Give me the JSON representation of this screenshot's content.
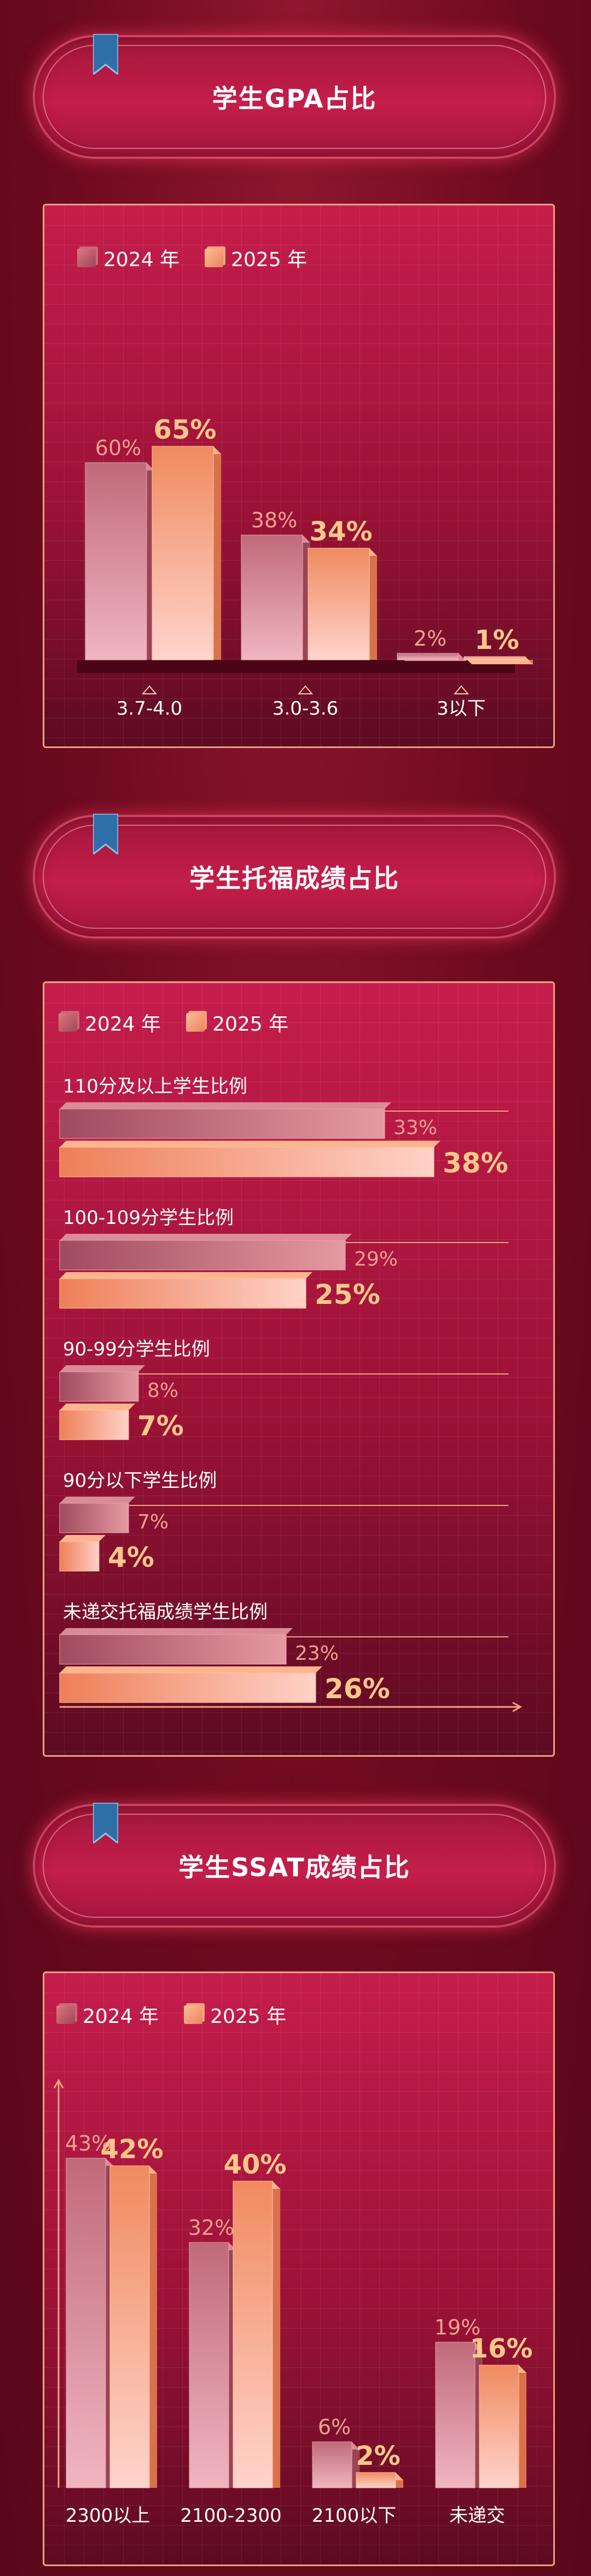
{
  "sections": [
    {
      "title": "学生GPA占比"
    },
    {
      "title": "学生托福成绩占比"
    },
    {
      "title": "学生SSAT成绩占比"
    }
  ],
  "legend": {
    "y2024": "2024 年",
    "y2025": "2025 年"
  },
  "colors": {
    "c2024": "#b45a6c",
    "c2025": "#f2a07a",
    "label2024": "#f0a090",
    "label2025": "#ffc88a"
  },
  "chart_data": [
    {
      "type": "bar",
      "title": "学生GPA占比",
      "categories": [
        "3.7-4.0",
        "3.0-3.6",
        "3以下"
      ],
      "series": [
        {
          "name": "2024 年",
          "values": [
            60,
            38,
            2
          ],
          "labels": [
            "60%",
            "38%",
            "2%"
          ]
        },
        {
          "name": "2025 年",
          "values": [
            65,
            34,
            1
          ],
          "labels": [
            "65%",
            "34%",
            "1%"
          ]
        }
      ],
      "ylim": [
        0,
        70
      ]
    },
    {
      "type": "bar",
      "orientation": "horizontal",
      "title": "学生托福成绩占比",
      "categories": [
        "110分及以上学生比例",
        "100-109分学生比例",
        "90-99分学生比例",
        "90分以下学生比例",
        "未递交托福成绩学生比例"
      ],
      "series": [
        {
          "name": "2024 年",
          "values": [
            33,
            29,
            8,
            7,
            23
          ],
          "labels": [
            "33%",
            "29%",
            "8%",
            "7%",
            "23%"
          ]
        },
        {
          "name": "2025 年",
          "values": [
            38,
            25,
            7,
            4,
            26
          ],
          "labels": [
            "38%",
            "25%",
            "7%",
            "4%",
            "26%"
          ]
        }
      ],
      "xlim": [
        0,
        40
      ]
    },
    {
      "type": "bar",
      "title": "学生SSAT成绩占比",
      "categories": [
        "2300以上",
        "2100-2300",
        "2100以下",
        "未递交"
      ],
      "series": [
        {
          "name": "2024 年",
          "values": [
            43,
            32,
            6,
            19
          ],
          "labels": [
            "43%",
            "32%",
            "6%",
            "19%"
          ]
        },
        {
          "name": "2025 年",
          "values": [
            42,
            40,
            2,
            16
          ],
          "labels": [
            "42%",
            "40%",
            "2%",
            "16%"
          ]
        }
      ],
      "ylim": [
        0,
        50
      ]
    }
  ]
}
